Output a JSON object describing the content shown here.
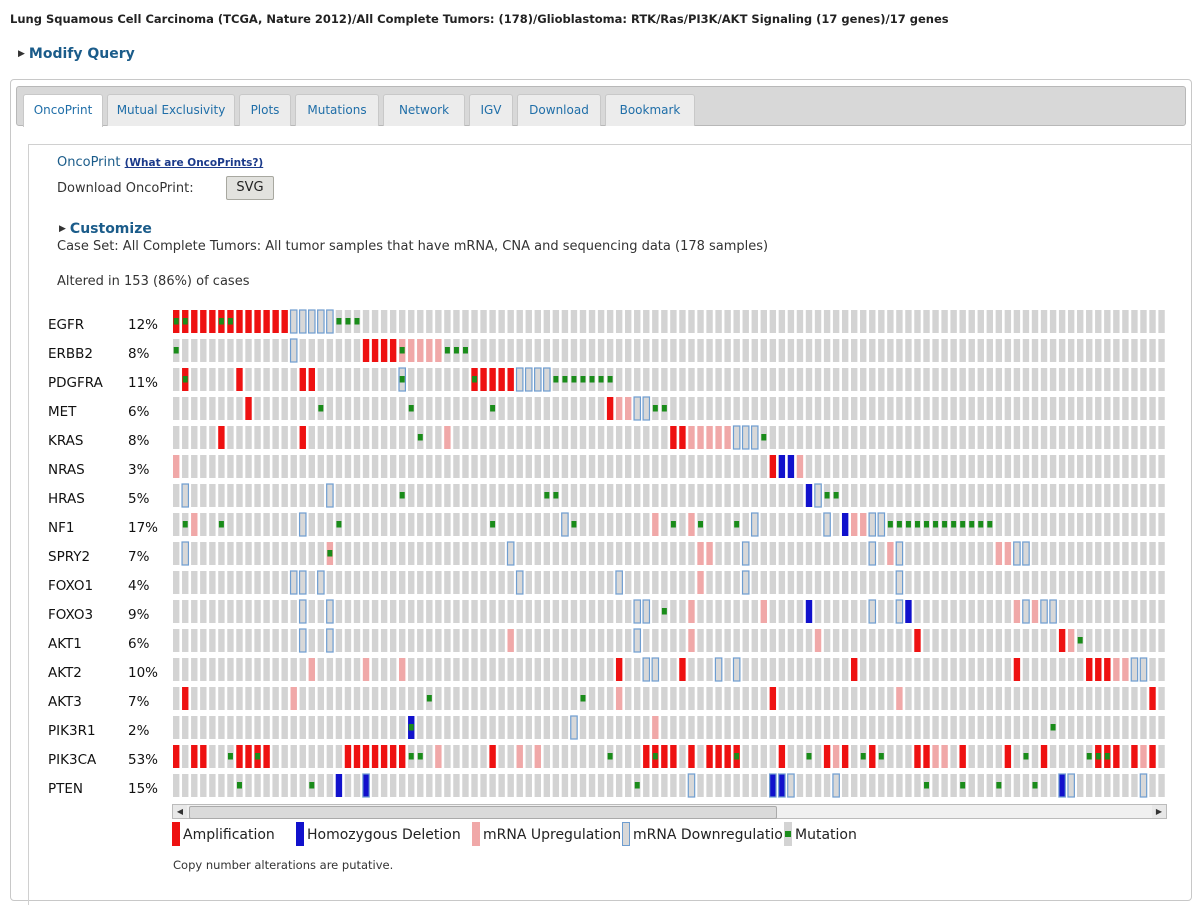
{
  "header": {
    "title": "Lung Squamous Cell Carcinoma (TCGA, Nature 2012)/All Complete Tumors: (178)/Glioblastoma: RTK/Ras/PI3K/AKT Signaling (17 genes)/17 genes",
    "modify_query": "Modify Query"
  },
  "tabs": [
    {
      "label": "OncoPrint",
      "active": true
    },
    {
      "label": "Mutual Exclusivity"
    },
    {
      "label": "Plots"
    },
    {
      "label": "Mutations"
    },
    {
      "label": "Network"
    },
    {
      "label": "IGV"
    },
    {
      "label": "Download"
    },
    {
      "label": "Bookmark"
    }
  ],
  "oncoprint": {
    "heading": "OncoPrint",
    "help_link": "(What are OncoPrints?)",
    "download_label": "Download OncoPrint:",
    "svg_button": "SVG",
    "customize": "Customize",
    "case_set": "Case Set: All Complete Tumors: All tumor samples that have mRNA, CNA and sequencing data (178 samples)",
    "altered": "Altered in 153 (86%) of cases",
    "footnote": "Copy number alterations are putative."
  },
  "genes": [
    {
      "name": "EGFR",
      "pct": "12%",
      "alts": [
        [
          0,
          "AM"
        ],
        [
          1,
          "AM"
        ],
        [
          2,
          "A"
        ],
        [
          3,
          "A"
        ],
        [
          4,
          "A"
        ],
        [
          5,
          "AM"
        ],
        [
          6,
          "AM"
        ],
        [
          7,
          "A"
        ],
        [
          8,
          "A"
        ],
        [
          9,
          "A"
        ],
        [
          10,
          "A"
        ],
        [
          11,
          "A"
        ],
        [
          12,
          "A"
        ],
        [
          13,
          "D"
        ],
        [
          14,
          "D"
        ],
        [
          15,
          "D"
        ],
        [
          16,
          "D"
        ],
        [
          17,
          "D"
        ],
        [
          18,
          "M"
        ],
        [
          19,
          "M"
        ],
        [
          20,
          "M"
        ]
      ]
    },
    {
      "name": "ERBB2",
      "pct": "8%",
      "alts": [
        [
          0,
          "M"
        ],
        [
          13,
          "D"
        ],
        [
          21,
          "A"
        ],
        [
          22,
          "A"
        ],
        [
          23,
          "A"
        ],
        [
          24,
          "A"
        ],
        [
          25,
          "UM"
        ],
        [
          26,
          "U"
        ],
        [
          27,
          "U"
        ],
        [
          28,
          "U"
        ],
        [
          29,
          "U"
        ],
        [
          30,
          "M"
        ],
        [
          31,
          "M"
        ],
        [
          32,
          "M"
        ]
      ]
    },
    {
      "name": "PDGFRA",
      "pct": "11%",
      "alts": [
        [
          1,
          "AM"
        ],
        [
          7,
          "A"
        ],
        [
          14,
          "A"
        ],
        [
          15,
          "A"
        ],
        [
          25,
          "DM"
        ],
        [
          33,
          "AM"
        ],
        [
          34,
          "UA"
        ],
        [
          35,
          "A"
        ],
        [
          36,
          "A"
        ],
        [
          37,
          "A"
        ],
        [
          38,
          "D"
        ],
        [
          39,
          "D"
        ],
        [
          40,
          "D"
        ],
        [
          41,
          "D"
        ],
        [
          42,
          "M"
        ],
        [
          43,
          "M"
        ],
        [
          44,
          "M"
        ],
        [
          45,
          "M"
        ],
        [
          46,
          "M"
        ],
        [
          47,
          "M"
        ],
        [
          48,
          "M"
        ]
      ]
    },
    {
      "name": "MET",
      "pct": "6%",
      "alts": [
        [
          8,
          "A"
        ],
        [
          16,
          "M"
        ],
        [
          26,
          "M"
        ],
        [
          35,
          "M"
        ],
        [
          48,
          "A"
        ],
        [
          49,
          "U"
        ],
        [
          50,
          "U"
        ],
        [
          51,
          "D"
        ],
        [
          52,
          "D"
        ],
        [
          53,
          "M"
        ],
        [
          54,
          "M"
        ]
      ]
    },
    {
      "name": "KRAS",
      "pct": "8%",
      "alts": [
        [
          5,
          "A"
        ],
        [
          14,
          "A"
        ],
        [
          27,
          "M"
        ],
        [
          30,
          "U"
        ],
        [
          55,
          "A"
        ],
        [
          56,
          "A"
        ],
        [
          57,
          "U"
        ],
        [
          58,
          "U"
        ],
        [
          59,
          "U"
        ],
        [
          60,
          "U"
        ],
        [
          61,
          "U"
        ],
        [
          62,
          "D"
        ],
        [
          63,
          "D"
        ],
        [
          64,
          "D"
        ],
        [
          65,
          "M"
        ]
      ]
    },
    {
      "name": "NRAS",
      "pct": "3%",
      "alts": [
        [
          0,
          "U"
        ],
        [
          66,
          "A"
        ],
        [
          67,
          "H"
        ],
        [
          68,
          "H"
        ],
        [
          69,
          "U"
        ]
      ]
    },
    {
      "name": "HRAS",
      "pct": "5%",
      "alts": [
        [
          1,
          "D"
        ],
        [
          17,
          "D"
        ],
        [
          25,
          "M"
        ],
        [
          41,
          "M"
        ],
        [
          42,
          "M"
        ],
        [
          70,
          "H"
        ],
        [
          71,
          "D"
        ],
        [
          72,
          "M"
        ],
        [
          73,
          "M"
        ]
      ]
    },
    {
      "name": "NF1",
      "pct": "17%",
      "alts": [
        [
          1,
          "M"
        ],
        [
          2,
          "U"
        ],
        [
          5,
          "M"
        ],
        [
          14,
          "D"
        ],
        [
          18,
          "M"
        ],
        [
          35,
          "M"
        ],
        [
          43,
          "D"
        ],
        [
          44,
          "M"
        ],
        [
          53,
          "U"
        ],
        [
          55,
          "M"
        ],
        [
          57,
          "U"
        ],
        [
          58,
          "M"
        ],
        [
          62,
          "M"
        ],
        [
          64,
          "D"
        ],
        [
          72,
          "D"
        ],
        [
          74,
          "H"
        ],
        [
          75,
          "U"
        ],
        [
          76,
          "U"
        ],
        [
          77,
          "D"
        ],
        [
          78,
          "D"
        ],
        [
          79,
          "M"
        ],
        [
          80,
          "M"
        ],
        [
          81,
          "M"
        ],
        [
          82,
          "M"
        ],
        [
          83,
          "M"
        ],
        [
          84,
          "M"
        ],
        [
          85,
          "M"
        ],
        [
          86,
          "M"
        ],
        [
          87,
          "M"
        ],
        [
          88,
          "M"
        ],
        [
          89,
          "M"
        ],
        [
          90,
          "M"
        ]
      ]
    },
    {
      "name": "SPRY2",
      "pct": "7%",
      "alts": [
        [
          1,
          "D"
        ],
        [
          17,
          "UM"
        ],
        [
          37,
          "D"
        ],
        [
          58,
          "U"
        ],
        [
          59,
          "U"
        ],
        [
          63,
          "D"
        ],
        [
          77,
          "D"
        ],
        [
          79,
          "U"
        ],
        [
          80,
          "D"
        ],
        [
          91,
          "U"
        ],
        [
          92,
          "U"
        ],
        [
          93,
          "D"
        ],
        [
          94,
          "D"
        ]
      ]
    },
    {
      "name": "FOXO1",
      "pct": "4%",
      "alts": [
        [
          13,
          "D"
        ],
        [
          14,
          "D"
        ],
        [
          16,
          "D"
        ],
        [
          38,
          "D"
        ],
        [
          49,
          "D"
        ],
        [
          58,
          "U"
        ],
        [
          63,
          "D"
        ],
        [
          80,
          "D"
        ]
      ]
    },
    {
      "name": "FOXO3",
      "pct": "9%",
      "alts": [
        [
          14,
          "D"
        ],
        [
          17,
          "D"
        ],
        [
          51,
          "D"
        ],
        [
          52,
          "D"
        ],
        [
          54,
          "M"
        ],
        [
          57,
          "U"
        ],
        [
          65,
          "U"
        ],
        [
          70,
          "H"
        ],
        [
          77,
          "D"
        ],
        [
          80,
          "D"
        ],
        [
          81,
          "H"
        ],
        [
          93,
          "U"
        ],
        [
          94,
          "D"
        ],
        [
          95,
          "U"
        ],
        [
          96,
          "D"
        ],
        [
          97,
          "D"
        ]
      ]
    },
    {
      "name": "AKT1",
      "pct": "6%",
      "alts": [
        [
          14,
          "D"
        ],
        [
          17,
          "D"
        ],
        [
          37,
          "U"
        ],
        [
          51,
          "D"
        ],
        [
          57,
          "U"
        ],
        [
          71,
          "U"
        ],
        [
          82,
          "A"
        ],
        [
          98,
          "A"
        ],
        [
          99,
          "U"
        ],
        [
          100,
          "M"
        ]
      ]
    },
    {
      "name": "AKT2",
      "pct": "10%",
      "alts": [
        [
          15,
          "U"
        ],
        [
          21,
          "U"
        ],
        [
          25,
          "U"
        ],
        [
          49,
          "A"
        ],
        [
          52,
          "D"
        ],
        [
          53,
          "D"
        ],
        [
          56,
          "A"
        ],
        [
          60,
          "D"
        ],
        [
          62,
          "D"
        ],
        [
          75,
          "A"
        ],
        [
          93,
          "A"
        ],
        [
          101,
          "A"
        ],
        [
          102,
          "A"
        ],
        [
          103,
          "A"
        ],
        [
          104,
          "U"
        ],
        [
          105,
          "U"
        ],
        [
          106,
          "D"
        ],
        [
          107,
          "D"
        ]
      ]
    },
    {
      "name": "AKT3",
      "pct": "7%",
      "alts": [
        [
          1,
          "A"
        ],
        [
          13,
          "U"
        ],
        [
          28,
          "M"
        ],
        [
          45,
          "M"
        ],
        [
          49,
          "U"
        ],
        [
          66,
          "A"
        ],
        [
          80,
          "U"
        ],
        [
          108,
          "A"
        ]
      ]
    },
    {
      "name": "PIK3R1",
      "pct": "2%",
      "alts": [
        [
          26,
          "HM"
        ],
        [
          44,
          "D"
        ],
        [
          53,
          "U"
        ],
        [
          97,
          "M"
        ]
      ]
    },
    {
      "name": "PIK3CA",
      "pct": "53%",
      "alts": [
        [
          0,
          "A"
        ],
        [
          2,
          "A"
        ],
        [
          3,
          "A"
        ],
        [
          6,
          "M"
        ],
        [
          7,
          "A"
        ],
        [
          8,
          "A"
        ],
        [
          9,
          "AM"
        ],
        [
          10,
          "A"
        ],
        [
          19,
          "A"
        ],
        [
          20,
          "A"
        ],
        [
          21,
          "A"
        ],
        [
          22,
          "A"
        ],
        [
          23,
          "A"
        ],
        [
          24,
          "A"
        ],
        [
          25,
          "A"
        ],
        [
          26,
          "M"
        ],
        [
          27,
          "M"
        ],
        [
          29,
          "U"
        ],
        [
          35,
          "A"
        ],
        [
          38,
          "U"
        ],
        [
          40,
          "U"
        ],
        [
          48,
          "M"
        ],
        [
          52,
          "A"
        ],
        [
          53,
          "AM"
        ],
        [
          54,
          "A"
        ],
        [
          55,
          "A"
        ],
        [
          57,
          "A"
        ],
        [
          59,
          "A"
        ],
        [
          60,
          "A"
        ],
        [
          61,
          "A"
        ],
        [
          62,
          "AM"
        ],
        [
          67,
          "A"
        ],
        [
          70,
          "M"
        ],
        [
          72,
          "A"
        ],
        [
          73,
          "U"
        ],
        [
          74,
          "A"
        ],
        [
          76,
          "M"
        ],
        [
          77,
          "A"
        ],
        [
          78,
          "M"
        ],
        [
          82,
          "A"
        ],
        [
          83,
          "A"
        ],
        [
          84,
          "U"
        ],
        [
          85,
          "U"
        ],
        [
          87,
          "A"
        ],
        [
          92,
          "A"
        ],
        [
          94,
          "M"
        ],
        [
          96,
          "A"
        ],
        [
          101,
          "M"
        ],
        [
          102,
          "AM"
        ],
        [
          103,
          "AM"
        ],
        [
          104,
          "A"
        ],
        [
          106,
          "A"
        ],
        [
          107,
          "U"
        ],
        [
          108,
          "A"
        ]
      ]
    },
    {
      "name": "PTEN",
      "pct": "15%",
      "alts": [
        [
          7,
          "M"
        ],
        [
          15,
          "M"
        ],
        [
          18,
          "H"
        ],
        [
          21,
          "HD"
        ],
        [
          51,
          "M"
        ],
        [
          57,
          "D"
        ],
        [
          66,
          "HD"
        ],
        [
          67,
          "HD"
        ],
        [
          68,
          "D"
        ],
        [
          73,
          "D"
        ],
        [
          83,
          "M"
        ],
        [
          87,
          "M"
        ],
        [
          91,
          "M"
        ],
        [
          95,
          "M"
        ],
        [
          98,
          "HD"
        ],
        [
          99,
          "D"
        ],
        [
          107,
          "D"
        ]
      ]
    }
  ],
  "legend": [
    {
      "label": "Amplification",
      "type": "A"
    },
    {
      "label": "Homozygous Deletion",
      "type": "H"
    },
    {
      "label": "mRNA Upregulation",
      "type": "U"
    },
    {
      "label": "mRNA Downregulation",
      "type": "D"
    },
    {
      "label": "Mutation",
      "type": "M"
    }
  ],
  "colors": {
    "amplification": "#ee1111",
    "homdel": "#1111cc",
    "mrna_up": "#f0a8a8",
    "mrna_down": "#6e9dd0",
    "mutation": "#1a8c1a",
    "unaltered": "#d3d3d3",
    "link": "#1b5c8a"
  }
}
